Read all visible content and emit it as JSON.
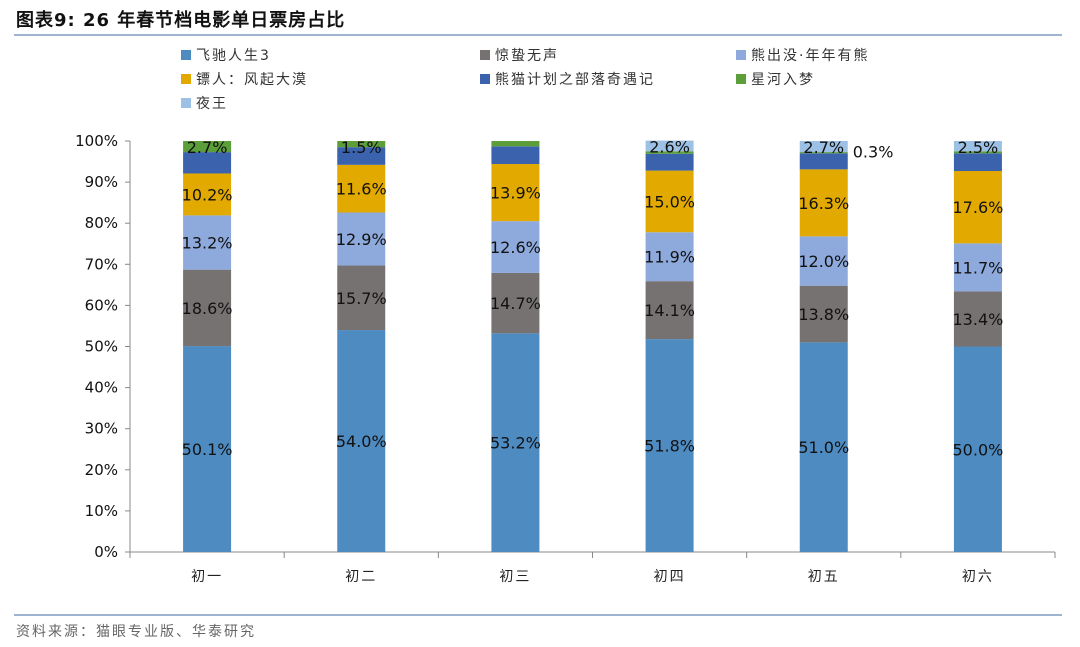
{
  "header": {
    "title": "图表9:  26 年春节档电影单日票房占比"
  },
  "footer": {
    "source": "资料来源：猫眼专业版、华泰研究"
  },
  "chart_data": {
    "type": "bar",
    "stacked": true,
    "title": "26 年春节档电影单日票房占比",
    "categories": [
      "初一",
      "初二",
      "初三",
      "初四",
      "初五",
      "初六"
    ],
    "ylim": [
      0,
      100
    ],
    "yticks": [
      "0%",
      "10%",
      "20%",
      "30%",
      "40%",
      "50%",
      "60%",
      "70%",
      "80%",
      "90%",
      "100%"
    ],
    "legend_position": "top",
    "series": [
      {
        "name": "飞驰人生3",
        "color": "#4e8bc1",
        "values": [
          50.1,
          54.0,
          53.2,
          51.8,
          51.0,
          50.0
        ],
        "labels": [
          "50.1%",
          "54.0%",
          "53.2%",
          "51.8%",
          "51.0%",
          "50.0%"
        ]
      },
      {
        "name": "惊蛰无声",
        "color": "#777272",
        "values": [
          18.6,
          15.7,
          14.7,
          14.1,
          13.8,
          13.4
        ],
        "labels": [
          "18.6%",
          "15.7%",
          "14.7%",
          "14.1%",
          "13.8%",
          "13.4%"
        ]
      },
      {
        "name": "熊出没·年年有熊",
        "color": "#8eaadc",
        "values": [
          13.2,
          12.9,
          12.6,
          11.9,
          12.0,
          11.7
        ],
        "labels": [
          "13.2%",
          "12.9%",
          "12.6%",
          "11.9%",
          "12.0%",
          "11.7%"
        ]
      },
      {
        "name": "镖人：风起大漠",
        "color": "#e2a900",
        "values": [
          10.2,
          11.6,
          13.9,
          15.0,
          16.3,
          17.6
        ],
        "labels": [
          "10.2%",
          "11.6%",
          "13.9%",
          "15.0%",
          "16.3%",
          "17.6%"
        ]
      },
      {
        "name": "熊猫计划之部落奇遇记",
        "color": "#3b62ad",
        "values": [
          5.2,
          4.3,
          4.3,
          4.1,
          3.9,
          4.3
        ],
        "labels": [
          null,
          null,
          null,
          null,
          null,
          null
        ]
      },
      {
        "name": "星河入梦",
        "color": "#5c9e3a",
        "values": [
          2.7,
          1.5,
          1.3,
          0.6,
          0.3,
          0.5
        ],
        "labels": [
          "2.7%",
          "1.5%",
          null,
          null,
          "0.3%",
          null
        ]
      },
      {
        "name": "夜王",
        "color": "#9dc0e5",
        "values": [
          0,
          0,
          0,
          2.6,
          2.7,
          2.5
        ],
        "labels": [
          null,
          null,
          null,
          "2.6%",
          "2.7%",
          "2.5%"
        ]
      }
    ]
  }
}
